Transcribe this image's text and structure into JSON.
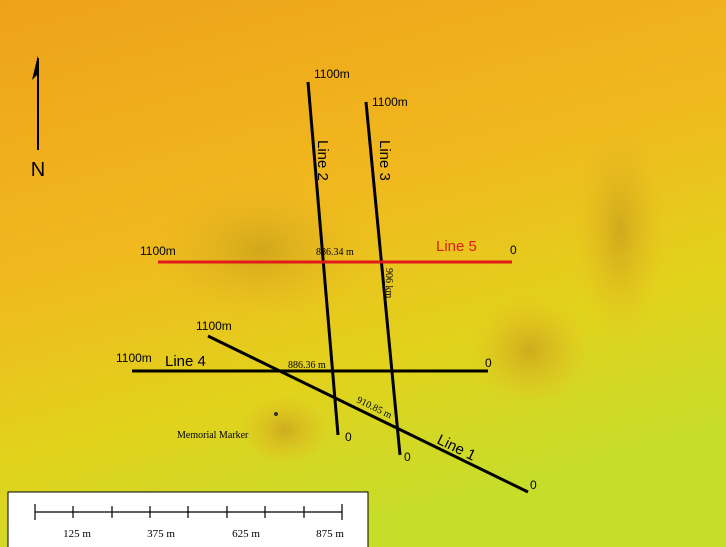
{
  "north_label": "N",
  "lines": [
    {
      "name": "Line 1",
      "start_label": "1100m",
      "end_label": "0"
    },
    {
      "name": "Line 2",
      "start_label": "1100m",
      "end_label": "0"
    },
    {
      "name": "Line 3",
      "start_label": "1100m",
      "end_label": "0"
    },
    {
      "name": "Line 4",
      "start_label": "1100m",
      "end_label": "0"
    },
    {
      "name": "Line 5",
      "start_label": "1100m",
      "end_label": "0"
    }
  ],
  "distance_labels": [
    "886.34 m",
    "886.36 m",
    "910.85 m",
    "906 km"
  ],
  "marker_label": "Memorial Marker",
  "scale_bar": {
    "labels": [
      "125 m",
      "375 m",
      "625 m",
      "875 m"
    ]
  }
}
